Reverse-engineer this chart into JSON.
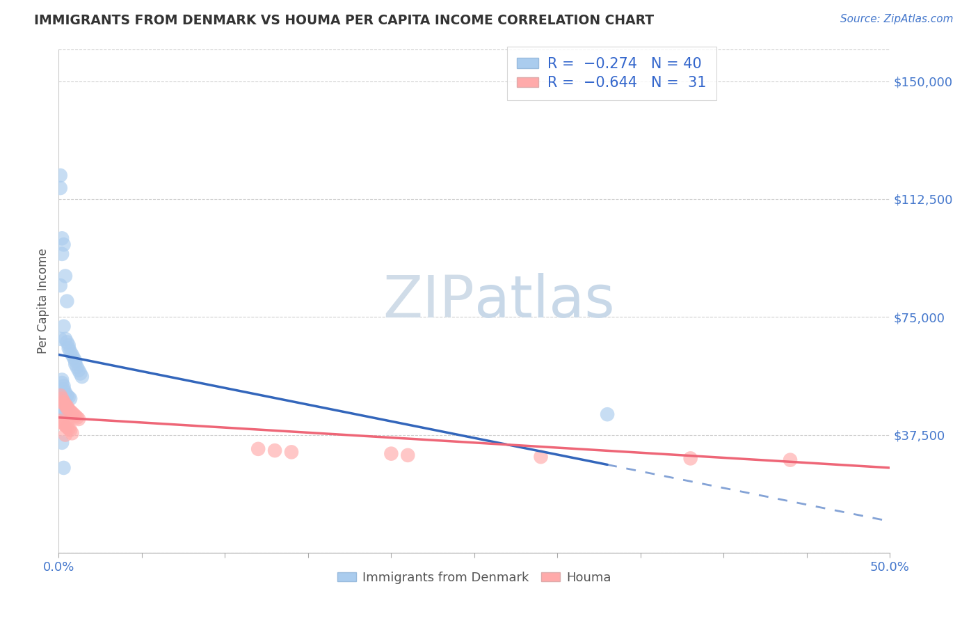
{
  "title": "IMMIGRANTS FROM DENMARK VS HOUMA PER CAPITA INCOME CORRELATION CHART",
  "source": "Source: ZipAtlas.com",
  "ylabel": "Per Capita Income",
  "xlim": [
    0.0,
    0.5
  ],
  "ylim": [
    0,
    160000
  ],
  "ytick_vals": [
    0,
    37500,
    75000,
    112500,
    150000
  ],
  "ytick_labels_right": [
    "",
    "$37,500",
    "$75,000",
    "$112,500",
    "$150,000"
  ],
  "xtick_vals": [
    0.0,
    0.05,
    0.1,
    0.15,
    0.2,
    0.25,
    0.3,
    0.35,
    0.4,
    0.45,
    0.5
  ],
  "xtick_labels": [
    "0.0%",
    "",
    "",
    "",
    "",
    "",
    "",
    "",
    "",
    "",
    "50.0%"
  ],
  "bg_color": "#ffffff",
  "grid_color": "#bbbbbb",
  "blue_scatter_color": "#aaccee",
  "pink_scatter_color": "#ffaaaa",
  "blue_line_color": "#3366bb",
  "pink_line_color": "#ee6677",
  "title_color": "#333333",
  "label_color": "#555555",
  "legend_text_color": "#3366cc",
  "right_tick_color": "#4477cc",
  "watermark_color": "#dde8f5",
  "R_blue": -0.274,
  "N_blue": 40,
  "R_pink": -0.644,
  "N_pink": 31,
  "blue_x": [
    0.001,
    0.001,
    0.001,
    0.002,
    0.002,
    0.003,
    0.003,
    0.004,
    0.004,
    0.005,
    0.005,
    0.006,
    0.006,
    0.007,
    0.008,
    0.009,
    0.01,
    0.01,
    0.011,
    0.012,
    0.013,
    0.014,
    0.002,
    0.002,
    0.003,
    0.003,
    0.004,
    0.005,
    0.006,
    0.007,
    0.002,
    0.003,
    0.004,
    0.001,
    0.002,
    0.003,
    0.004,
    0.33,
    0.002,
    0.003
  ],
  "blue_y": [
    120000,
    116000,
    85000,
    100000,
    95000,
    98000,
    72000,
    88000,
    68000,
    80000,
    67000,
    66000,
    65000,
    64000,
    63000,
    62000,
    61000,
    60000,
    59000,
    58000,
    57000,
    56000,
    55000,
    54000,
    53000,
    52000,
    51000,
    50000,
    49500,
    49000,
    48500,
    48000,
    47500,
    68000,
    46000,
    45500,
    45000,
    44000,
    35000,
    27000
  ],
  "pink_x": [
    0.001,
    0.002,
    0.003,
    0.003,
    0.004,
    0.005,
    0.005,
    0.006,
    0.007,
    0.008,
    0.009,
    0.01,
    0.011,
    0.012,
    0.001,
    0.002,
    0.003,
    0.004,
    0.005,
    0.006,
    0.007,
    0.008,
    0.12,
    0.13,
    0.14,
    0.2,
    0.21,
    0.29,
    0.38,
    0.44,
    0.004
  ],
  "pink_y": [
    50000,
    49000,
    48000,
    47500,
    47000,
    46500,
    46000,
    45500,
    45000,
    44500,
    44000,
    43500,
    43000,
    42500,
    42000,
    41500,
    41000,
    40500,
    40000,
    39500,
    39000,
    38000,
    33000,
    32500,
    32000,
    31500,
    31000,
    30500,
    30000,
    29500,
    37500
  ]
}
